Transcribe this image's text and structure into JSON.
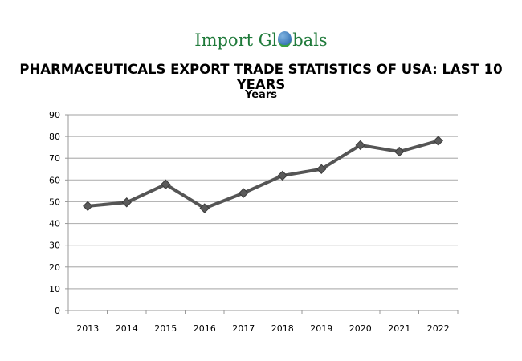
{
  "logo": {
    "text_left": "Import Gl",
    "text_right": "bals",
    "brand_color": "#1f7a3a"
  },
  "chart_data": {
    "type": "line",
    "title": "PHARMACEUTICALS EXPORT TRADE STATISTICS OF USA: LAST 10 YEARS",
    "subtitle": "Years",
    "categories": [
      "2013",
      "2014",
      "2015",
      "2016",
      "2017",
      "2018",
      "2019",
      "2020",
      "2021",
      "2022"
    ],
    "series": [
      {
        "values": [
          48,
          49.7,
          58,
          47,
          54,
          62,
          65,
          76,
          73,
          78
        ],
        "color": "#555555",
        "marker": "diamond"
      }
    ],
    "ylim": [
      0,
      90
    ],
    "yticks": [
      0,
      10,
      20,
      30,
      40,
      50,
      60,
      70,
      80,
      90
    ],
    "grid": true,
    "legend": "none"
  }
}
